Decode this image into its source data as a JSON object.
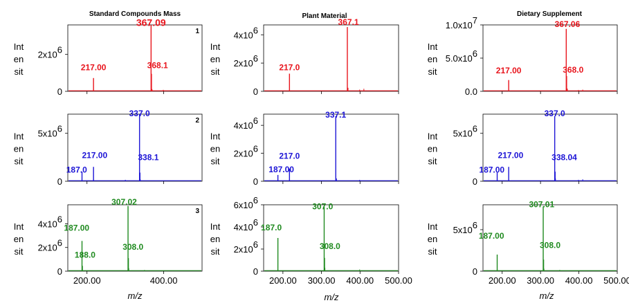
{
  "figure": {
    "column_titles": [
      "Standard Compounds Mass",
      "Plant Material",
      "Dietary Supplement"
    ],
    "x_axis_label": "m/z",
    "y_axis_label_lines": [
      "Int",
      "en",
      "sit"
    ]
  },
  "chart_data": [
    {
      "type": "line",
      "row": 0,
      "col": 0,
      "color": "#e8141c",
      "panel_number": "1",
      "xlim": [
        150,
        500
      ],
      "ylim": [
        0,
        3600000
      ],
      "xticks": [
        {
          "value": 200,
          "label": "200.00"
        },
        {
          "value": 400,
          "label": "400.00"
        }
      ],
      "yticks": [
        {
          "value": 0,
          "label": "0",
          "exp": ""
        },
        {
          "value": 2000000,
          "label": "2x10",
          "exp": "6"
        }
      ],
      "peaks": [
        {
          "x": 217,
          "y": 720000
        },
        {
          "x": 367.09,
          "y": 3600000
        },
        {
          "x": 368.1,
          "y": 950000
        }
      ],
      "minor_peaks": [
        {
          "x": 369.5,
          "y": 120000
        },
        {
          "x": 371,
          "y": 60000
        },
        {
          "x": 399,
          "y": 80000
        }
      ],
      "labels": [
        {
          "text": "217.00",
          "x": 217,
          "y": 1150000
        },
        {
          "text": "367.09",
          "x": 367,
          "y": 3550000,
          "large": true
        },
        {
          "text": "368.1",
          "x": 384,
          "y": 1250000
        }
      ]
    },
    {
      "type": "line",
      "row": 0,
      "col": 1,
      "color": "#e8141c",
      "panel_number": "",
      "xlim": [
        150,
        500
      ],
      "ylim": [
        0,
        4700000
      ],
      "xticks": [
        {
          "value": 200,
          "label": "200.00"
        },
        {
          "value": 300,
          "label": "300.00"
        },
        {
          "value": 400,
          "label": "400.00"
        },
        {
          "value": 500,
          "label": "500.00"
        }
      ],
      "yticks": [
        {
          "value": 0,
          "label": "0",
          "exp": ""
        },
        {
          "value": 2000000,
          "label": "2x10",
          "exp": "6"
        },
        {
          "value": 4000000,
          "label": "4x10",
          "exp": "6"
        }
      ],
      "peaks": [
        {
          "x": 217,
          "y": 1250000
        },
        {
          "x": 367.1,
          "y": 4550000
        }
      ],
      "minor_peaks": [
        {
          "x": 369,
          "y": 250000
        },
        {
          "x": 399,
          "y": 120000
        },
        {
          "x": 410,
          "y": 180000
        }
      ],
      "labels": [
        {
          "text": "217.0",
          "x": 217,
          "y": 1500000
        },
        {
          "text": "367.1",
          "x": 370,
          "y": 4700000
        }
      ]
    },
    {
      "type": "line",
      "row": 0,
      "col": 2,
      "color": "#e8141c",
      "panel_number": "",
      "xlim": [
        150,
        500
      ],
      "ylim": [
        0,
        10000000
      ],
      "xticks": [
        {
          "value": 200,
          "label": "200.00"
        },
        {
          "value": 300,
          "label": "300.00"
        },
        {
          "value": 400,
          "label": "400.00"
        },
        {
          "value": 500,
          "label": "500.00"
        }
      ],
      "yticks": [
        {
          "value": 0,
          "label": "0.0",
          "exp": ""
        },
        {
          "value": 5000000,
          "label": "5.0x10",
          "exp": "6"
        },
        {
          "value": 10000000,
          "label": "1.0x10",
          "exp": "7"
        }
      ],
      "peaks": [
        {
          "x": 217,
          "y": 1700000
        },
        {
          "x": 367.06,
          "y": 9400000
        },
        {
          "x": 368,
          "y": 2300000
        }
      ],
      "minor_peaks": [
        {
          "x": 370,
          "y": 400000
        },
        {
          "x": 399,
          "y": 200000
        },
        {
          "x": 410,
          "y": 250000
        }
      ],
      "labels": [
        {
          "text": "217.00",
          "x": 217,
          "y": 2700000
        },
        {
          "text": "367.06",
          "x": 370,
          "y": 9700000
        },
        {
          "text": "368.0",
          "x": 385,
          "y": 2800000
        }
      ]
    },
    {
      "type": "line",
      "row": 1,
      "col": 0,
      "color": "#1c14d6",
      "panel_number": "2",
      "xlim": [
        150,
        500
      ],
      "ylim": [
        0,
        7000000
      ],
      "xticks": [
        {
          "value": 200,
          "label": "200.00"
        },
        {
          "value": 400,
          "label": "400.00"
        }
      ],
      "yticks": [
        {
          "value": 0,
          "label": "0",
          "exp": ""
        },
        {
          "value": 5000000,
          "label": "5x10",
          "exp": "6"
        }
      ],
      "peaks": [
        {
          "x": 187,
          "y": 1000000
        },
        {
          "x": 217,
          "y": 1500000
        },
        {
          "x": 337,
          "y": 7000000
        },
        {
          "x": 338.1,
          "y": 900000
        }
      ],
      "minor_peaks": [
        {
          "x": 300,
          "y": 150000
        },
        {
          "x": 339,
          "y": 200000
        }
      ],
      "labels": [
        {
          "text": "187.0",
          "x": 173,
          "y": 900000
        },
        {
          "text": "217.00",
          "x": 220,
          "y": 2400000
        },
        {
          "text": "337.0",
          "x": 337,
          "y": 6800000
        },
        {
          "text": "338.1",
          "x": 360,
          "y": 2200000
        }
      ]
    },
    {
      "type": "line",
      "row": 1,
      "col": 1,
      "color": "#1c14d6",
      "panel_number": "",
      "xlim": [
        150,
        500
      ],
      "ylim": [
        0,
        4800000
      ],
      "xticks": [
        {
          "value": 200,
          "label": "200.00"
        },
        {
          "value": 300,
          "label": "300.00"
        },
        {
          "value": 400,
          "label": "400.00"
        },
        {
          "value": 500,
          "label": "500.00"
        }
      ],
      "yticks": [
        {
          "value": 0,
          "label": "0",
          "exp": ""
        },
        {
          "value": 2000000,
          "label": "2x10",
          "exp": "6"
        },
        {
          "value": 4000000,
          "label": "4x10",
          "exp": "6"
        }
      ],
      "peaks": [
        {
          "x": 187,
          "y": 450000
        },
        {
          "x": 217,
          "y": 900000
        },
        {
          "x": 337.1,
          "y": 4650000
        }
      ],
      "minor_peaks": [
        {
          "x": 339,
          "y": 200000
        },
        {
          "x": 399,
          "y": 100000
        }
      ],
      "labels": [
        {
          "text": "217.0",
          "x": 217,
          "y": 1600000
        },
        {
          "text": "187.00",
          "x": 196,
          "y": 650000
        },
        {
          "text": "337.1",
          "x": 337,
          "y": 4550000
        }
      ]
    },
    {
      "type": "line",
      "row": 1,
      "col": 2,
      "color": "#1c14d6",
      "panel_number": "",
      "xlim": [
        150,
        500
      ],
      "ylim": [
        0,
        7000000
      ],
      "xticks": [
        {
          "value": 200,
          "label": "200.00"
        },
        {
          "value": 300,
          "label": "300.00"
        },
        {
          "value": 400,
          "label": "400.00"
        },
        {
          "value": 500,
          "label": "500.00"
        }
      ],
      "yticks": [
        {
          "value": 0,
          "label": "0",
          "exp": ""
        },
        {
          "value": 5000000,
          "label": "5x10",
          "exp": "6"
        }
      ],
      "peaks": [
        {
          "x": 187,
          "y": 900000
        },
        {
          "x": 217,
          "y": 1500000
        },
        {
          "x": 337,
          "y": 6800000
        },
        {
          "x": 338.04,
          "y": 1000000
        }
      ],
      "minor_peaks": [
        {
          "x": 339,
          "y": 300000
        },
        {
          "x": 399,
          "y": 150000
        },
        {
          "x": 410,
          "y": 200000
        }
      ],
      "labels": [
        {
          "text": "217.00",
          "x": 222,
          "y": 2400000
        },
        {
          "text": "187.00",
          "x": 173,
          "y": 900000
        },
        {
          "text": "337.0",
          "x": 337,
          "y": 6800000
        },
        {
          "text": "338.04",
          "x": 362,
          "y": 2200000
        }
      ]
    },
    {
      "type": "line",
      "row": 2,
      "col": 0,
      "color": "#1f8a1f",
      "panel_number": "3",
      "xlim": [
        150,
        500
      ],
      "ylim": [
        0,
        5600000
      ],
      "xticks": [
        {
          "value": 200,
          "label": "200.00"
        },
        {
          "value": 400,
          "label": "400.00"
        }
      ],
      "yticks": [
        {
          "value": 0,
          "label": "0",
          "exp": ""
        },
        {
          "value": 2000000,
          "label": "2x10",
          "exp": "6"
        },
        {
          "value": 4000000,
          "label": "4x10",
          "exp": "6"
        }
      ],
      "peaks": [
        {
          "x": 187,
          "y": 2550000
        },
        {
          "x": 188,
          "y": 450000
        },
        {
          "x": 307.02,
          "y": 5500000
        },
        {
          "x": 308,
          "y": 1100000
        }
      ],
      "minor_peaks": [
        {
          "x": 309,
          "y": 250000
        },
        {
          "x": 350,
          "y": 100000
        }
      ],
      "labels": [
        {
          "text": "187.00",
          "x": 173,
          "y": 3400000
        },
        {
          "text": "188.0",
          "x": 195,
          "y": 1150000
        },
        {
          "text": "307.02",
          "x": 297,
          "y": 5600000
        },
        {
          "text": "308.0",
          "x": 320,
          "y": 1800000
        }
      ]
    },
    {
      "type": "line",
      "row": 2,
      "col": 1,
      "color": "#1f8a1f",
      "panel_number": "",
      "xlim": [
        150,
        500
      ],
      "ylim": [
        0,
        6000000
      ],
      "xticks": [
        {
          "value": 200,
          "label": "200.00"
        },
        {
          "value": 300,
          "label": "300.00"
        },
        {
          "value": 400,
          "label": "400.00"
        },
        {
          "value": 500,
          "label": "500.00"
        }
      ],
      "yticks": [
        {
          "value": 0,
          "label": "0",
          "exp": ""
        },
        {
          "value": 2000000,
          "label": "2x10",
          "exp": "6"
        },
        {
          "value": 4000000,
          "label": "4x10",
          "exp": "6"
        },
        {
          "value": 6000000,
          "label": "6x10",
          "exp": "6"
        }
      ],
      "peaks": [
        {
          "x": 187,
          "y": 3000000
        },
        {
          "x": 307,
          "y": 5800000
        },
        {
          "x": 308,
          "y": 1200000
        }
      ],
      "minor_peaks": [
        {
          "x": 309,
          "y": 300000
        },
        {
          "x": 399,
          "y": 150000
        }
      ],
      "labels": [
        {
          "text": "187.0",
          "x": 170,
          "y": 3700000
        },
        {
          "text": "307.0",
          "x": 303,
          "y": 5600000
        },
        {
          "text": "308.0",
          "x": 322,
          "y": 2000000
        }
      ]
    },
    {
      "type": "line",
      "row": 2,
      "col": 2,
      "color": "#1f8a1f",
      "panel_number": "",
      "xlim": [
        150,
        500
      ],
      "ylim": [
        0,
        8000000
      ],
      "xticks": [
        {
          "value": 200,
          "label": "200.00"
        },
        {
          "value": 300,
          "label": "300.00"
        },
        {
          "value": 400,
          "label": "400.00"
        },
        {
          "value": 500,
          "label": "500.00"
        }
      ],
      "yticks": [
        {
          "value": 0,
          "label": "0",
          "exp": ""
        },
        {
          "value": 5000000,
          "label": "5x10",
          "exp": "6"
        }
      ],
      "peaks": [
        {
          "x": 187,
          "y": 2000000
        },
        {
          "x": 307.01,
          "y": 7800000
        },
        {
          "x": 308,
          "y": 1400000
        }
      ],
      "minor_peaks": [
        {
          "x": 309,
          "y": 300000
        },
        {
          "x": 350,
          "y": 150000
        }
      ],
      "labels": [
        {
          "text": "187.00",
          "x": 172,
          "y": 3900000
        },
        {
          "text": "307.01",
          "x": 303,
          "y": 7700000
        },
        {
          "text": "308.0",
          "x": 325,
          "y": 2800000
        }
      ]
    }
  ]
}
